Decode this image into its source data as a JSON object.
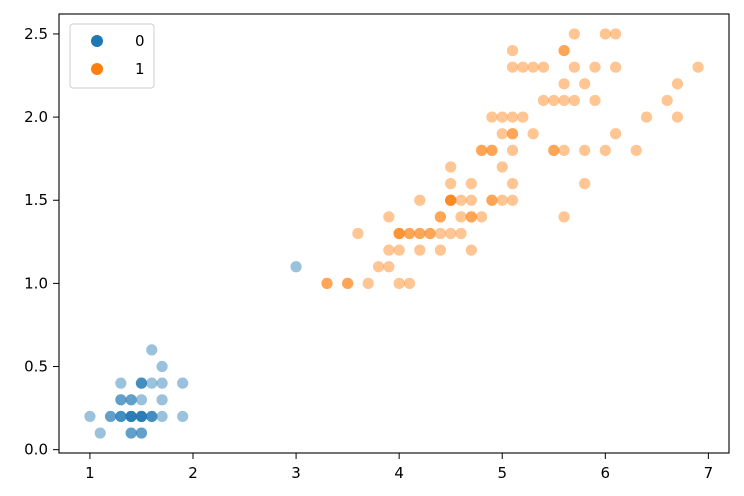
{
  "chart_data": {
    "type": "scatter",
    "title": "",
    "xlabel": "",
    "ylabel": "",
    "xlim": [
      0.7,
      7.2
    ],
    "ylim": [
      -0.02,
      2.62
    ],
    "xticks": [
      1,
      2,
      3,
      4,
      5,
      6,
      7
    ],
    "yticks": [
      0.0,
      0.5,
      1.0,
      1.5,
      2.0,
      2.5
    ],
    "grid": false,
    "legend_position": "top-left",
    "point_opacity": 0.45,
    "series": [
      {
        "name": "0",
        "color": "#1f77b4",
        "points": [
          [
            1.0,
            0.2
          ],
          [
            1.1,
            0.1
          ],
          [
            1.2,
            0.2
          ],
          [
            1.2,
            0.2
          ],
          [
            1.3,
            0.2
          ],
          [
            1.3,
            0.2
          ],
          [
            1.3,
            0.2
          ],
          [
            1.3,
            0.3
          ],
          [
            1.3,
            0.3
          ],
          [
            1.3,
            0.4
          ],
          [
            1.4,
            0.1
          ],
          [
            1.4,
            0.1
          ],
          [
            1.4,
            0.2
          ],
          [
            1.4,
            0.2
          ],
          [
            1.4,
            0.2
          ],
          [
            1.4,
            0.2
          ],
          [
            1.4,
            0.2
          ],
          [
            1.4,
            0.3
          ],
          [
            1.4,
            0.3
          ],
          [
            1.5,
            0.1
          ],
          [
            1.5,
            0.1
          ],
          [
            1.5,
            0.2
          ],
          [
            1.5,
            0.2
          ],
          [
            1.5,
            0.2
          ],
          [
            1.5,
            0.2
          ],
          [
            1.5,
            0.2
          ],
          [
            1.5,
            0.3
          ],
          [
            1.5,
            0.4
          ],
          [
            1.5,
            0.4
          ],
          [
            1.5,
            0.4
          ],
          [
            1.6,
            0.2
          ],
          [
            1.6,
            0.2
          ],
          [
            1.6,
            0.2
          ],
          [
            1.6,
            0.4
          ],
          [
            1.6,
            0.6
          ],
          [
            1.7,
            0.2
          ],
          [
            1.7,
            0.3
          ],
          [
            1.7,
            0.4
          ],
          [
            1.7,
            0.5
          ],
          [
            1.9,
            0.2
          ],
          [
            1.9,
            0.4
          ],
          [
            3.0,
            1.1
          ]
        ]
      },
      {
        "name": "1",
        "color": "#ff7f0e",
        "points": [
          [
            3.3,
            1.0
          ],
          [
            3.3,
            1.0
          ],
          [
            3.5,
            1.0
          ],
          [
            3.5,
            1.0
          ],
          [
            3.6,
            1.3
          ],
          [
            3.7,
            1.0
          ],
          [
            3.8,
            1.1
          ],
          [
            3.9,
            1.1
          ],
          [
            3.9,
            1.2
          ],
          [
            3.9,
            1.4
          ],
          [
            4.0,
            1.0
          ],
          [
            4.0,
            1.2
          ],
          [
            4.0,
            1.3
          ],
          [
            4.0,
            1.3
          ],
          [
            4.0,
            1.3
          ],
          [
            4.1,
            1.0
          ],
          [
            4.1,
            1.3
          ],
          [
            4.1,
            1.3
          ],
          [
            4.2,
            1.2
          ],
          [
            4.2,
            1.3
          ],
          [
            4.2,
            1.3
          ],
          [
            4.2,
            1.5
          ],
          [
            4.3,
            1.3
          ],
          [
            4.3,
            1.3
          ],
          [
            4.4,
            1.2
          ],
          [
            4.4,
            1.3
          ],
          [
            4.4,
            1.4
          ],
          [
            4.4,
            1.4
          ],
          [
            4.5,
            1.3
          ],
          [
            4.5,
            1.5
          ],
          [
            4.5,
            1.5
          ],
          [
            4.5,
            1.5
          ],
          [
            4.5,
            1.5
          ],
          [
            4.5,
            1.6
          ],
          [
            4.5,
            1.7
          ],
          [
            4.6,
            1.3
          ],
          [
            4.6,
            1.4
          ],
          [
            4.6,
            1.5
          ],
          [
            4.7,
            1.2
          ],
          [
            4.7,
            1.4
          ],
          [
            4.7,
            1.4
          ],
          [
            4.7,
            1.5
          ],
          [
            4.7,
            1.6
          ],
          [
            4.8,
            1.4
          ],
          [
            4.8,
            1.8
          ],
          [
            4.8,
            1.8
          ],
          [
            4.9,
            1.5
          ],
          [
            4.9,
            1.5
          ],
          [
            4.9,
            1.8
          ],
          [
            4.9,
            1.8
          ],
          [
            4.9,
            2.0
          ],
          [
            5.0,
            1.5
          ],
          [
            5.0,
            1.7
          ],
          [
            5.0,
            1.9
          ],
          [
            5.0,
            2.0
          ],
          [
            5.1,
            1.5
          ],
          [
            5.1,
            1.6
          ],
          [
            5.1,
            1.8
          ],
          [
            5.1,
            1.9
          ],
          [
            5.1,
            1.9
          ],
          [
            5.1,
            2.0
          ],
          [
            5.1,
            2.3
          ],
          [
            5.1,
            2.4
          ],
          [
            5.2,
            2.0
          ],
          [
            5.2,
            2.3
          ],
          [
            5.3,
            1.9
          ],
          [
            5.3,
            2.3
          ],
          [
            5.4,
            2.1
          ],
          [
            5.4,
            2.3
          ],
          [
            5.5,
            1.8
          ],
          [
            5.5,
            1.8
          ],
          [
            5.5,
            2.1
          ],
          [
            5.6,
            1.4
          ],
          [
            5.6,
            1.8
          ],
          [
            5.6,
            2.1
          ],
          [
            5.6,
            2.2
          ],
          [
            5.6,
            2.4
          ],
          [
            5.6,
            2.4
          ],
          [
            5.7,
            2.1
          ],
          [
            5.7,
            2.3
          ],
          [
            5.7,
            2.5
          ],
          [
            5.8,
            1.6
          ],
          [
            5.8,
            1.8
          ],
          [
            5.8,
            2.2
          ],
          [
            5.9,
            2.1
          ],
          [
            5.9,
            2.3
          ],
          [
            6.0,
            1.8
          ],
          [
            6.0,
            2.5
          ],
          [
            6.1,
            1.9
          ],
          [
            6.1,
            2.3
          ],
          [
            6.1,
            2.5
          ],
          [
            6.3,
            1.8
          ],
          [
            6.4,
            2.0
          ],
          [
            6.6,
            2.1
          ],
          [
            6.7,
            2.0
          ],
          [
            6.7,
            2.2
          ],
          [
            6.9,
            2.3
          ]
        ]
      }
    ]
  }
}
